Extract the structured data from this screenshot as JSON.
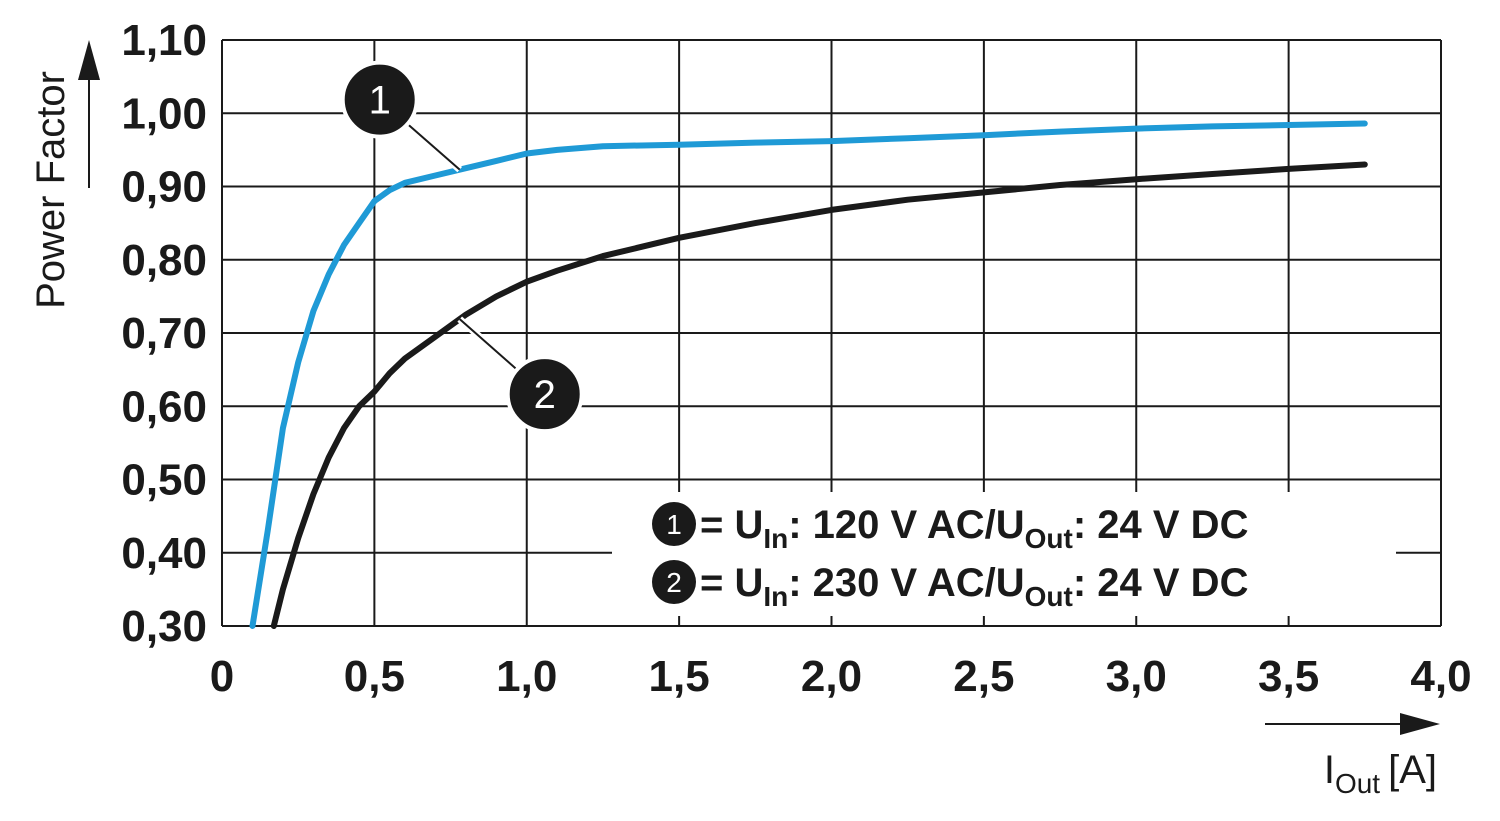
{
  "chart_data": {
    "type": "line",
    "title": "",
    "ylabel": "Power Factor",
    "xlabel": {
      "main": "I",
      "sub": "Out",
      "unit": "[A]"
    },
    "xlim": [
      0,
      4.0
    ],
    "ylim": [
      0.3,
      1.1
    ],
    "x_ticks": [
      0,
      0.5,
      1.0,
      1.5,
      2.0,
      2.5,
      3.0,
      3.5,
      4.0
    ],
    "x_tick_labels": [
      "0",
      "0,5",
      "1,0",
      "1,5",
      "2,0",
      "2,5",
      "3,0",
      "3,5",
      "4,0"
    ],
    "y_ticks": [
      0.3,
      0.4,
      0.5,
      0.6,
      0.7,
      0.8,
      0.9,
      1.0,
      1.1
    ],
    "y_tick_labels": [
      "0,30",
      "0,40",
      "0,50",
      "0,60",
      "0,70",
      "0,80",
      "0,90",
      "1,00",
      "1,10"
    ],
    "grid": true,
    "legend_position": "bottom-right",
    "series": [
      {
        "marker_label": "1",
        "color": "#1f9ad6",
        "legend": {
          "eq": " = U",
          "sub1": "In",
          "mid": ": 120 V AC/U",
          "sub2": "Out",
          "end": ": 24 V DC"
        },
        "x": [
          0.1,
          0.15,
          0.2,
          0.25,
          0.3,
          0.35,
          0.4,
          0.45,
          0.5,
          0.55,
          0.6,
          0.7,
          0.8,
          0.9,
          1.0,
          1.1,
          1.25,
          1.5,
          1.75,
          2.0,
          2.25,
          2.5,
          2.75,
          3.0,
          3.25,
          3.5,
          3.75
        ],
        "y": [
          0.3,
          0.43,
          0.57,
          0.66,
          0.73,
          0.78,
          0.82,
          0.85,
          0.88,
          0.895,
          0.905,
          0.915,
          0.925,
          0.935,
          0.945,
          0.95,
          0.955,
          0.957,
          0.96,
          0.962,
          0.966,
          0.97,
          0.975,
          0.979,
          0.982,
          0.984,
          0.986
        ]
      },
      {
        "marker_label": "2",
        "color": "#1a1a1a",
        "legend": {
          "eq": " = U",
          "sub1": "In",
          "mid": ": 230 V AC/U",
          "sub2": "Out",
          "end": ": 24 V DC"
        },
        "x": [
          0.17,
          0.2,
          0.25,
          0.3,
          0.35,
          0.4,
          0.45,
          0.5,
          0.55,
          0.6,
          0.7,
          0.8,
          0.9,
          1.0,
          1.1,
          1.25,
          1.5,
          1.75,
          2.0,
          2.25,
          2.5,
          2.75,
          3.0,
          3.25,
          3.5,
          3.75
        ],
        "y": [
          0.3,
          0.35,
          0.42,
          0.48,
          0.53,
          0.57,
          0.6,
          0.62,
          0.645,
          0.665,
          0.695,
          0.725,
          0.75,
          0.77,
          0.785,
          0.805,
          0.83,
          0.85,
          0.868,
          0.882,
          0.892,
          0.902,
          0.91,
          0.917,
          0.924,
          0.93
        ]
      }
    ]
  }
}
